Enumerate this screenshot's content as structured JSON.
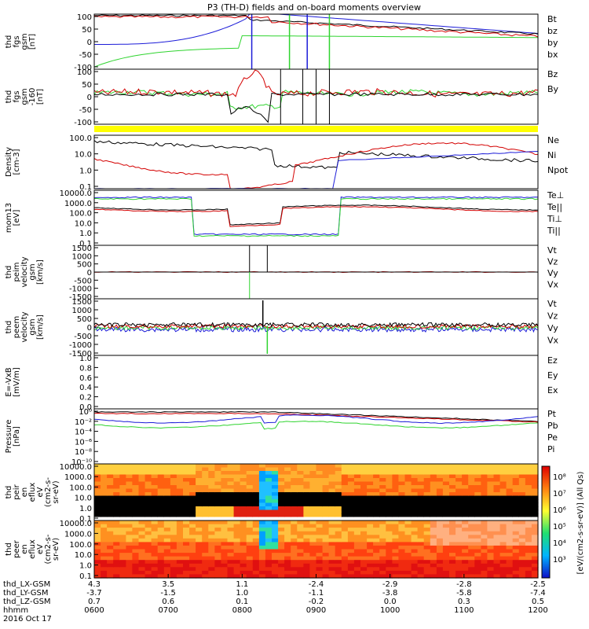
{
  "title": "P3 (TH-D) fields and on-board moments overview",
  "colors": {
    "black": "#000000",
    "red": "#d40000",
    "green": "#2fd42f",
    "blue": "#1c1cd8",
    "yellow": "#ffff00"
  },
  "chart_data": [
    {
      "type": "line",
      "ylabel": [
        "thd",
        "fgs",
        "gsm",
        "[nT]"
      ],
      "ylim": [
        -100,
        100
      ],
      "yticks": [
        "100",
        "50",
        "0",
        "-50",
        "-100"
      ],
      "series": [
        {
          "name": "Bt",
          "color": "black"
        },
        {
          "name": "bz",
          "color": "red"
        },
        {
          "name": "by",
          "color": "green"
        },
        {
          "name": "bx",
          "color": "blue"
        }
      ]
    },
    {
      "type": "line",
      "ylabel": [
        "thd",
        "fgs",
        "gsm",
        "-160"
      ],
      "unit": "[nT]",
      "ylim": [
        -130,
        100
      ],
      "yticks": [
        "100",
        "50",
        "0",
        "-50",
        "-100"
      ],
      "series": [
        {
          "name": "Bz",
          "color": "red"
        },
        {
          "name": "By",
          "color": "green"
        }
      ]
    },
    {
      "type": "line",
      "ylabel": [
        "Density",
        "[cm-3]"
      ],
      "log": true,
      "yticks": [
        "100.0",
        "10.0",
        "1.0",
        "0.1"
      ],
      "series": [
        {
          "name": "Ne",
          "color": "red"
        },
        {
          "name": "Ni",
          "color": "black"
        },
        {
          "name": "Npot",
          "color": "blue"
        }
      ]
    },
    {
      "type": "line",
      "ylabel": [
        "mom13",
        "[eV]"
      ],
      "log": true,
      "yticks": [
        "10000.0",
        "1000.0",
        "100.0",
        "10.0",
        "1.0",
        "0.1"
      ],
      "series": [
        {
          "name": "Te⊥",
          "color": "red"
        },
        {
          "name": "Te||",
          "color": "black"
        },
        {
          "name": "Ti⊥",
          "color": "blue"
        },
        {
          "name": "Ti||",
          "color": "green"
        }
      ]
    },
    {
      "type": "line",
      "ylabel": [
        "thd",
        "peim",
        "velocity",
        "gsm",
        "[km/s]"
      ],
      "ylim": [
        -1500,
        1500
      ],
      "yticks": [
        "1500",
        "1000",
        "500",
        "0",
        "-500",
        "-1000",
        "-1500"
      ],
      "series": [
        {
          "name": "Vt",
          "color": "black"
        },
        {
          "name": "Vz",
          "color": "red"
        },
        {
          "name": "Vy",
          "color": "green"
        },
        {
          "name": "Vx",
          "color": "blue"
        }
      ]
    },
    {
      "type": "line",
      "ylabel": [
        "thd",
        "peem",
        "velocity",
        "gsm",
        "[km/s]"
      ],
      "ylim": [
        -1500,
        1500
      ],
      "yticks": [
        "1500",
        "1000",
        "500",
        "0",
        "-500",
        "-1000",
        "-1500"
      ],
      "series": [
        {
          "name": "Vt",
          "color": "black"
        },
        {
          "name": "Vz",
          "color": "red"
        },
        {
          "name": "Vy",
          "color": "green"
        },
        {
          "name": "Vx",
          "color": "blue"
        }
      ]
    },
    {
      "type": "line",
      "ylabel": [
        "E=-VxB",
        "[mV/m]"
      ],
      "yticks": [
        "1.0",
        "0.8",
        "0.6",
        "0.4",
        "0.2",
        "0.0"
      ],
      "series": [
        {
          "name": "Ez",
          "color": "red"
        },
        {
          "name": "Ey",
          "color": "green"
        },
        {
          "name": "Ex",
          "color": "blue"
        }
      ]
    },
    {
      "type": "line",
      "ylabel": [
        "Pressure",
        "[nPa]"
      ],
      "log": true,
      "yticks": [
        "10⁰",
        "10⁻²",
        "10⁻⁴",
        "10⁻⁶",
        "10⁻⁸",
        "10⁻¹⁰"
      ],
      "series": [
        {
          "name": "Pt",
          "color": "black"
        },
        {
          "name": "Pb",
          "color": "red"
        },
        {
          "name": "Pe",
          "color": "green"
        },
        {
          "name": "Pi",
          "color": "blue"
        }
      ]
    },
    {
      "type": "heatmap",
      "ylabel": [
        "thd",
        "peir",
        "en",
        "eflux",
        "eV",
        "(cm2-s-",
        "sr-eV)"
      ],
      "yticks": [
        "10000.0",
        "1000.0",
        "100.0",
        "10.0",
        "1.0",
        "0.1"
      ]
    },
    {
      "type": "heatmap",
      "ylabel": [
        "thd",
        "peer",
        "en",
        "eflux",
        "eV",
        "(cm2-s-",
        "sr-eV)"
      ],
      "yticks": [
        "10000.0",
        "1000.0",
        "100.0",
        "10.0",
        "1.0",
        "0.1"
      ]
    }
  ],
  "colorbar": {
    "label": "[eV/(cm2-s-sr-eV)] (All Qs)",
    "ticks": [
      "10⁸",
      "10⁷",
      "10⁶",
      "10⁵",
      "10⁴",
      "10³"
    ],
    "ticks2": [
      "10⁸",
      "10⁶",
      "10⁴",
      "10²"
    ]
  },
  "xaxis": {
    "rows": [
      {
        "label": "thd_LX-GSM",
        "values": [
          "4.3",
          "3.5",
          "1.1",
          "-2.4",
          "-2.9",
          "-2.8",
          "-2.5"
        ]
      },
      {
        "label": "thd_LY-GSM",
        "values": [
          "-3.7",
          "-1.5",
          "1.0",
          "-1.1",
          "-3.8",
          "-5.8",
          "-7.4"
        ]
      },
      {
        "label": "thd_LZ-GSM",
        "values": [
          "0.7",
          "0.6",
          "0.1",
          "-0.2",
          "0.0",
          "0.3",
          "0.5"
        ]
      },
      {
        "label": "hhmm",
        "values": [
          "0600",
          "0700",
          "0800",
          "0900",
          "1000",
          "1100",
          "1200"
        ]
      }
    ],
    "date": "2016 Oct 17"
  }
}
